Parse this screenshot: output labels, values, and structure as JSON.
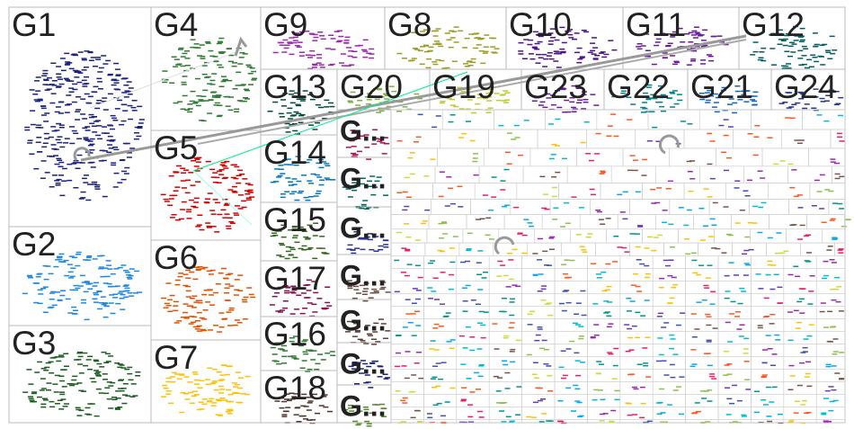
{
  "groups": [
    {
      "label": "G1"
    },
    {
      "label": "G2"
    },
    {
      "label": "G3"
    },
    {
      "label": "G4"
    },
    {
      "label": "G5"
    },
    {
      "label": "G6"
    },
    {
      "label": "G7"
    },
    {
      "label": "G9"
    },
    {
      "label": "G8"
    },
    {
      "label": "G10"
    },
    {
      "label": "G11"
    },
    {
      "label": "G12"
    },
    {
      "label": "G13"
    },
    {
      "label": "G20"
    },
    {
      "label": "G19"
    },
    {
      "label": "G23"
    },
    {
      "label": "G22"
    },
    {
      "label": "G21"
    },
    {
      "label": "G24"
    },
    {
      "label": "G14"
    },
    {
      "label": "G15"
    },
    {
      "label": "G17"
    },
    {
      "label": "G16"
    },
    {
      "label": "G18"
    },
    {
      "label": "G..."
    },
    {
      "label": "G..."
    },
    {
      "label": "G..."
    },
    {
      "label": "G..."
    },
    {
      "label": "G..."
    },
    {
      "label": "G..."
    },
    {
      "label": "G..."
    }
  ]
}
